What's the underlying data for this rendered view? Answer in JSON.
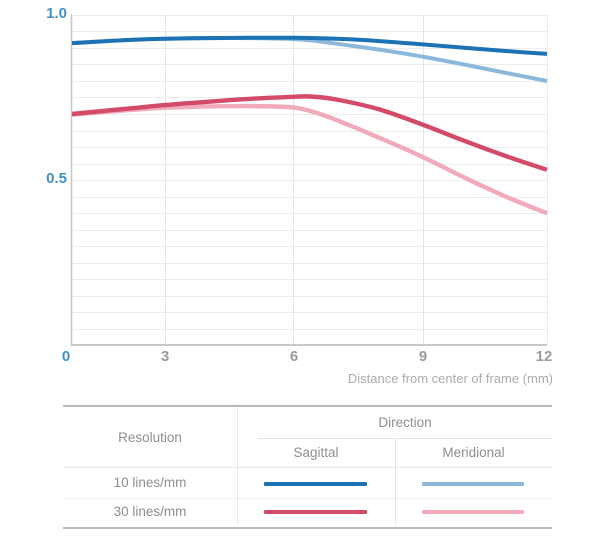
{
  "chart_data": {
    "type": "line",
    "title": "",
    "xlabel": "Distance from center of frame (mm)",
    "ylabel": "",
    "xlim": [
      0,
      12
    ],
    "ylim": [
      0,
      1.0
    ],
    "x_ticks": [
      0,
      3,
      6,
      9,
      12
    ],
    "x_tick_labels": [
      "0",
      "3",
      "6",
      "9",
      "12"
    ],
    "y_ticks": [
      1.0,
      0.5
    ],
    "y_tick_labels": [
      "1.0",
      "0.5"
    ],
    "grid": true,
    "minor_grid_step_y": 0.05,
    "legend_position": "bottom-table",
    "series": [
      {
        "name": "10 lines/mm Sagittal",
        "color": "#1b72b4",
        "x": [
          0,
          1,
          2,
          3,
          4,
          5,
          6,
          7,
          8,
          9,
          10,
          11,
          12
        ],
        "values": [
          0.915,
          0.92,
          0.925,
          0.928,
          0.93,
          0.931,
          0.931,
          0.928,
          0.921,
          0.911,
          0.901,
          0.891,
          0.882
        ]
      },
      {
        "name": "10 lines/mm Meridional",
        "color": "#8cb8dc",
        "x": [
          0,
          1,
          2,
          3,
          4,
          5,
          6,
          6.5,
          7,
          8,
          9,
          10,
          11,
          12
        ],
        "values": [
          0.915,
          0.92,
          0.925,
          0.928,
          0.93,
          0.93,
          0.927,
          0.922,
          0.913,
          0.895,
          0.874,
          0.85,
          0.825,
          0.8
        ]
      },
      {
        "name": "30 lines/mm Sagittal",
        "color": "#d44b6a",
        "x": [
          0,
          1,
          2,
          3,
          4,
          5,
          6,
          6.4,
          7,
          8,
          9,
          10,
          11,
          12
        ],
        "values": [
          0.7,
          0.709,
          0.718,
          0.727,
          0.737,
          0.746,
          0.752,
          0.753,
          0.744,
          0.714,
          0.668,
          0.619,
          0.573,
          0.531
        ]
      },
      {
        "name": "30 lines/mm Meridional",
        "color": "#f0aab9",
        "x": [
          0,
          1,
          2,
          3,
          4,
          5,
          6,
          6.5,
          7,
          8,
          9,
          10,
          11,
          12
        ],
        "values": [
          0.698,
          0.706,
          0.713,
          0.719,
          0.723,
          0.724,
          0.72,
          0.705,
          0.682,
          0.628,
          0.57,
          0.508,
          0.45,
          0.399
        ]
      }
    ]
  },
  "axis_style": {
    "tick_blue": "#4191ca",
    "tick_gray": "#9b9b9b",
    "axis_line": "#c9c9c9",
    "grid_minor": "#ededed",
    "grid_vertical": "#e4e4e4"
  },
  "legend_table": {
    "resolution_header": "Resolution",
    "direction_header": "Direction",
    "direction_columns": [
      "Sagittal",
      "Meridional"
    ],
    "rows": [
      {
        "label": "10 lines/mm",
        "sagittal_color": "#1b72b4",
        "meridional_color": "#8cb8dc"
      },
      {
        "label": "30 lines/mm",
        "sagittal_color": "#d44b6a",
        "meridional_color": "#f0aab9"
      }
    ]
  }
}
